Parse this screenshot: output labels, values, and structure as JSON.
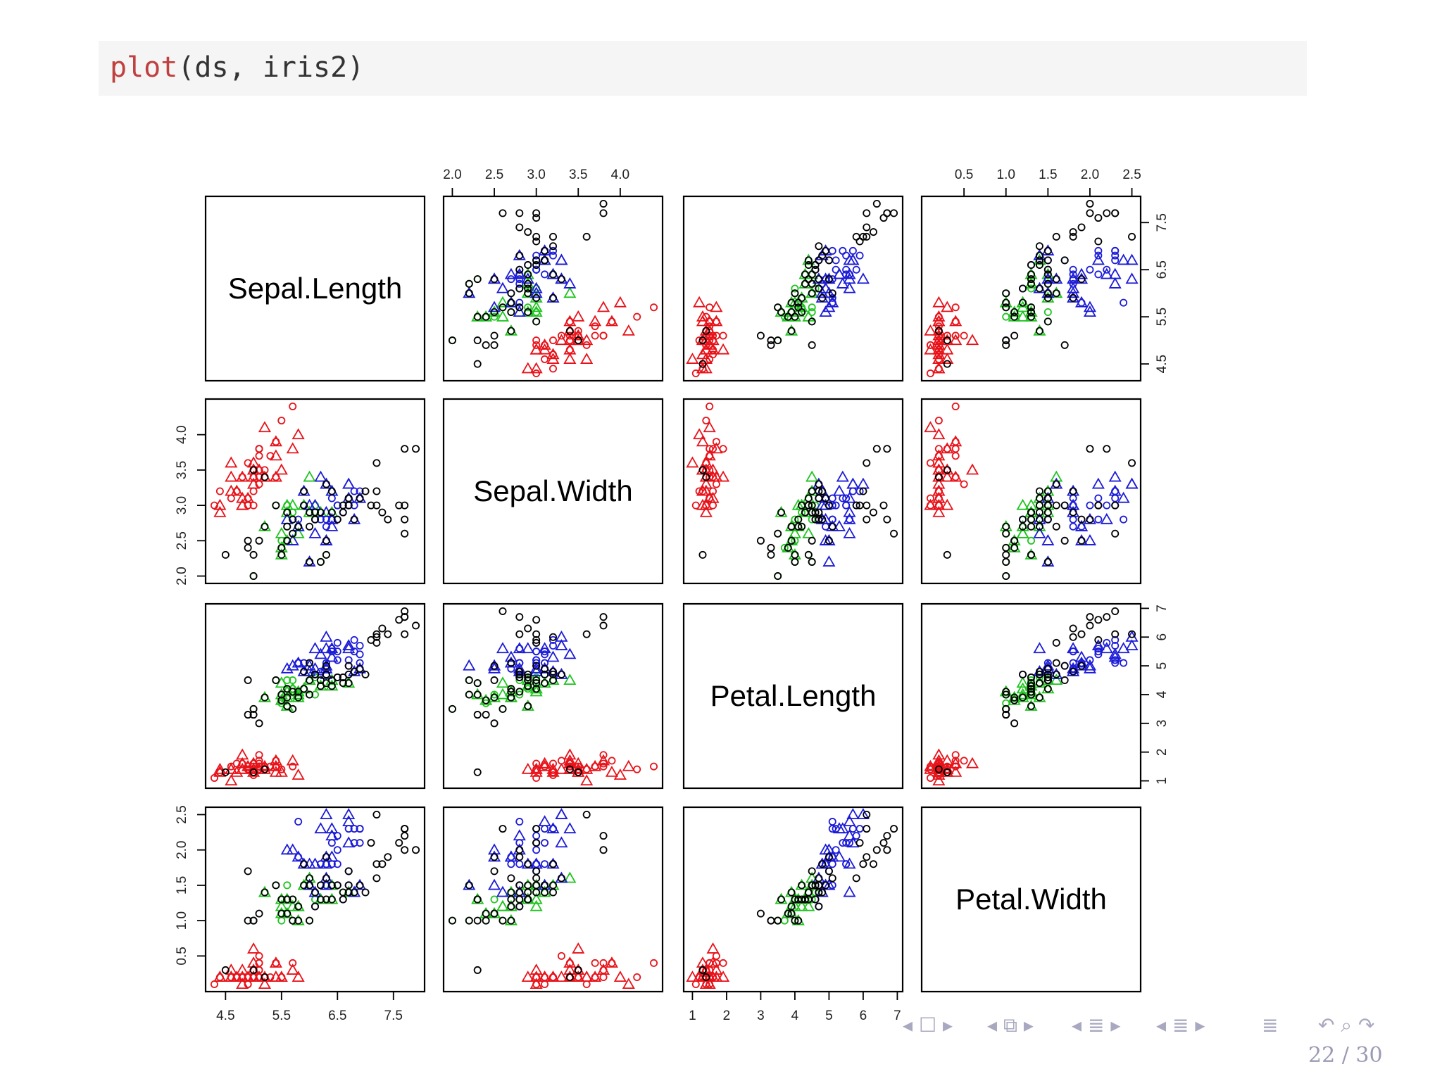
{
  "code": {
    "function_name": "plot",
    "arguments": "(ds, iris2)"
  },
  "chart_data": {
    "type": "scatter",
    "plot_kind": "scatterplot-matrix",
    "variables": [
      "Sepal.Length",
      "Sepal.Width",
      "Petal.Length",
      "Petal.Width"
    ],
    "ranges": {
      "Sepal.Length": [
        4.3,
        7.9
      ],
      "Sepal.Width": [
        2.0,
        4.4
      ],
      "Petal.Length": [
        1.0,
        6.9
      ],
      "Petal.Width": [
        0.1,
        2.5
      ]
    },
    "ticks": {
      "Sepal.Length": [
        "4.5",
        "5.5",
        "6.5",
        "7.5"
      ],
      "Sepal.Width": [
        "2.0",
        "2.5",
        "3.0",
        "3.5",
        "4.0"
      ],
      "Petal.Length": [
        "1",
        "2",
        "3",
        "4",
        "5",
        "6",
        "7"
      ],
      "Petal.Width": [
        "0.5",
        "1.0",
        "1.5",
        "2.0",
        "2.5"
      ]
    },
    "grid": false,
    "legend": "none",
    "colors": {
      "red": "#e8131a",
      "green": "#1fc41f",
      "blue": "#1c1cd8",
      "black": "#000000"
    },
    "marker_shapes": [
      "triangle",
      "circle"
    ],
    "groups": [
      {
        "color": "red",
        "points": [
          [
            5.1,
            3.5,
            1.4,
            0.2
          ],
          [
            4.9,
            3.0,
            1.4,
            0.2
          ],
          [
            4.7,
            3.2,
            1.3,
            0.2
          ],
          [
            4.6,
            3.1,
            1.5,
            0.2
          ],
          [
            5.0,
            3.6,
            1.4,
            0.2
          ],
          [
            5.4,
            3.9,
            1.7,
            0.4
          ],
          [
            4.6,
            3.4,
            1.4,
            0.3
          ],
          [
            5.0,
            3.4,
            1.5,
            0.2
          ],
          [
            4.4,
            2.9,
            1.4,
            0.2
          ],
          [
            4.9,
            3.1,
            1.5,
            0.1
          ],
          [
            5.4,
            3.7,
            1.5,
            0.2
          ],
          [
            4.8,
            3.4,
            1.6,
            0.2
          ],
          [
            4.8,
            3.0,
            1.4,
            0.1
          ],
          [
            4.3,
            3.0,
            1.1,
            0.1
          ],
          [
            5.8,
            4.0,
            1.2,
            0.2
          ],
          [
            5.7,
            4.4,
            1.5,
            0.4
          ],
          [
            5.4,
            3.9,
            1.3,
            0.4
          ],
          [
            5.1,
            3.5,
            1.4,
            0.3
          ],
          [
            5.7,
            3.8,
            1.7,
            0.3
          ],
          [
            5.1,
            3.8,
            1.5,
            0.3
          ],
          [
            5.4,
            3.4,
            1.7,
            0.2
          ],
          [
            5.1,
            3.7,
            1.5,
            0.4
          ],
          [
            4.6,
            3.6,
            1.0,
            0.2
          ],
          [
            5.1,
            3.3,
            1.7,
            0.5
          ],
          [
            4.8,
            3.4,
            1.9,
            0.2
          ],
          [
            5.0,
            3.0,
            1.6,
            0.2
          ],
          [
            5.0,
            3.4,
            1.6,
            0.4
          ],
          [
            5.2,
            3.5,
            1.5,
            0.2
          ],
          [
            5.2,
            3.4,
            1.4,
            0.2
          ],
          [
            4.7,
            3.2,
            1.6,
            0.2
          ],
          [
            4.8,
            3.1,
            1.6,
            0.2
          ],
          [
            5.4,
            3.4,
            1.5,
            0.4
          ],
          [
            5.2,
            4.1,
            1.5,
            0.1
          ],
          [
            5.5,
            4.2,
            1.4,
            0.2
          ],
          [
            4.9,
            3.1,
            1.5,
            0.2
          ],
          [
            5.0,
            3.2,
            1.2,
            0.2
          ],
          [
            5.5,
            3.5,
            1.3,
            0.2
          ],
          [
            4.9,
            3.6,
            1.4,
            0.1
          ],
          [
            4.4,
            3.0,
            1.3,
            0.2
          ],
          [
            5.1,
            3.4,
            1.5,
            0.2
          ],
          [
            5.0,
            3.5,
            1.3,
            0.3
          ],
          [
            4.4,
            3.2,
            1.3,
            0.2
          ],
          [
            5.0,
            3.5,
            1.6,
            0.6
          ],
          [
            5.1,
            3.8,
            1.9,
            0.4
          ],
          [
            4.8,
            3.0,
            1.4,
            0.3
          ],
          [
            5.1,
            3.8,
            1.6,
            0.2
          ],
          [
            4.6,
            3.2,
            1.4,
            0.2
          ],
          [
            5.3,
            3.7,
            1.5,
            0.2
          ],
          [
            5.0,
            3.3,
            1.4,
            0.2
          ]
        ]
      },
      {
        "color": "green",
        "points": [
          [
            5.5,
            2.3,
            4.0,
            1.3
          ],
          [
            5.7,
            2.8,
            4.5,
            1.3
          ],
          [
            5.2,
            2.7,
            3.9,
            1.4
          ],
          [
            5.0,
            2.0,
            3.5,
            1.0
          ],
          [
            5.9,
            3.0,
            4.2,
            1.5
          ],
          [
            6.0,
            2.2,
            4.0,
            1.0
          ],
          [
            5.6,
            2.9,
            3.6,
            1.3
          ],
          [
            5.6,
            3.0,
            4.5,
            1.5
          ],
          [
            5.8,
            2.7,
            4.1,
            1.0
          ],
          [
            6.2,
            2.2,
            4.5,
            1.5
          ],
          [
            5.6,
            2.5,
            3.9,
            1.1
          ],
          [
            6.1,
            2.8,
            4.0,
            1.3
          ],
          [
            6.4,
            2.9,
            4.3,
            1.3
          ],
          [
            6.6,
            3.0,
            4.4,
            1.4
          ],
          [
            6.0,
            2.9,
            4.5,
            1.5
          ],
          [
            5.7,
            2.6,
            3.5,
            1.0
          ],
          [
            5.5,
            2.4,
            3.8,
            1.1
          ],
          [
            5.5,
            2.4,
            3.7,
            1.0
          ],
          [
            5.8,
            2.7,
            3.9,
            1.2
          ],
          [
            5.4,
            3.0,
            4.5,
            1.5
          ],
          [
            6.0,
            3.4,
            4.5,
            1.6
          ],
          [
            6.3,
            2.3,
            4.4,
            1.3
          ],
          [
            5.6,
            3.0,
            4.1,
            1.3
          ],
          [
            5.5,
            2.5,
            4.0,
            1.3
          ],
          [
            5.5,
            2.6,
            4.4,
            1.2
          ],
          [
            6.1,
            3.0,
            4.6,
            1.4
          ],
          [
            5.8,
            2.6,
            4.0,
            1.2
          ],
          [
            5.6,
            2.7,
            4.2,
            1.3
          ],
          [
            5.7,
            3.0,
            4.2,
            1.2
          ],
          [
            5.7,
            2.9,
            4.2,
            1.3
          ],
          [
            6.2,
            2.9,
            4.3,
            1.3
          ],
          [
            5.7,
            2.8,
            4.1,
            1.3
          ],
          [
            6.7,
            3.1,
            4.4,
            1.4
          ],
          [
            6.1,
            2.9,
            4.7,
            1.4
          ],
          [
            6.4,
            3.2,
            4.5,
            1.5
          ]
        ]
      },
      {
        "color": "blue",
        "points": [
          [
            6.9,
            3.1,
            4.9,
            1.5
          ],
          [
            6.5,
            2.8,
            4.6,
            1.5
          ],
          [
            6.3,
            3.3,
            4.7,
            1.6
          ],
          [
            6.6,
            2.9,
            4.6,
            1.3
          ],
          [
            6.8,
            2.8,
            4.8,
            1.4
          ],
          [
            6.7,
            3.0,
            5.0,
            1.7
          ],
          [
            6.3,
            2.5,
            4.9,
            1.5
          ],
          [
            6.1,
            2.8,
            4.7,
            1.2
          ],
          [
            5.9,
            3.2,
            4.8,
            1.8
          ],
          [
            6.7,
            3.1,
            4.7,
            1.5
          ],
          [
            6.3,
            3.3,
            6.0,
            2.5
          ],
          [
            5.8,
            2.7,
            5.1,
            1.9
          ],
          [
            6.3,
            2.9,
            5.6,
            1.8
          ],
          [
            6.5,
            3.0,
            5.8,
            2.2
          ],
          [
            6.4,
            2.7,
            5.3,
            1.9
          ],
          [
            6.8,
            3.0,
            5.5,
            2.1
          ],
          [
            5.7,
            2.5,
            5.0,
            2.0
          ],
          [
            5.8,
            2.8,
            5.1,
            2.4
          ],
          [
            6.4,
            3.2,
            5.3,
            2.3
          ],
          [
            6.5,
            3.0,
            5.5,
            1.8
          ],
          [
            6.0,
            2.2,
            5.0,
            1.5
          ],
          [
            6.9,
            3.2,
            5.7,
            2.3
          ],
          [
            5.6,
            2.8,
            4.9,
            2.0
          ],
          [
            6.3,
            2.7,
            4.9,
            1.8
          ],
          [
            6.7,
            3.3,
            5.7,
            2.1
          ],
          [
            6.2,
            2.8,
            4.8,
            1.8
          ],
          [
            6.1,
            3.0,
            4.9,
            1.8
          ],
          [
            6.4,
            2.8,
            5.6,
            2.1
          ],
          [
            6.4,
            2.8,
            5.6,
            2.2
          ],
          [
            6.3,
            2.8,
            5.1,
            1.5
          ],
          [
            6.1,
            2.6,
            5.6,
            1.4
          ],
          [
            6.4,
            3.1,
            5.5,
            1.8
          ],
          [
            6.0,
            3.0,
            4.8,
            1.8
          ],
          [
            6.9,
            3.1,
            5.4,
            2.1
          ],
          [
            6.7,
            3.1,
            5.6,
            2.4
          ],
          [
            6.9,
            3.1,
            5.1,
            2.3
          ],
          [
            5.8,
            2.7,
            5.1,
            1.9
          ],
          [
            6.8,
            3.2,
            5.9,
            2.3
          ],
          [
            6.7,
            3.3,
            5.7,
            2.5
          ],
          [
            6.7,
            3.0,
            5.2,
            2.3
          ],
          [
            6.3,
            2.5,
            5.0,
            1.9
          ],
          [
            6.5,
            3.0,
            5.2,
            2.0
          ],
          [
            6.2,
            3.4,
            5.4,
            2.3
          ],
          [
            5.9,
            3.0,
            5.1,
            1.8
          ]
        ]
      },
      {
        "color": "black",
        "points": [
          [
            7.0,
            3.2,
            4.7,
            1.4
          ],
          [
            6.4,
            3.2,
            4.5,
            1.5
          ],
          [
            4.9,
            2.4,
            3.3,
            1.0
          ],
          [
            5.2,
            2.7,
            3.9,
            1.4
          ],
          [
            5.0,
            2.0,
            3.5,
            1.0
          ],
          [
            5.9,
            3.0,
            4.2,
            1.5
          ],
          [
            6.0,
            2.2,
            4.0,
            1.0
          ],
          [
            6.1,
            2.9,
            4.7,
            1.4
          ],
          [
            5.6,
            2.9,
            3.6,
            1.3
          ],
          [
            6.7,
            3.1,
            4.4,
            1.4
          ],
          [
            5.8,
            2.7,
            4.1,
            1.0
          ],
          [
            6.2,
            2.2,
            4.5,
            1.5
          ],
          [
            5.6,
            2.5,
            3.9,
            1.1
          ],
          [
            5.9,
            3.2,
            4.8,
            1.8
          ],
          [
            6.1,
            2.8,
            4.7,
            1.2
          ],
          [
            6.4,
            2.9,
            4.3,
            1.3
          ],
          [
            6.6,
            3.0,
            4.4,
            1.4
          ],
          [
            6.8,
            2.8,
            4.8,
            1.4
          ],
          [
            6.7,
            3.0,
            5.0,
            1.7
          ],
          [
            6.0,
            2.9,
            4.5,
            1.5
          ],
          [
            5.7,
            2.6,
            3.5,
            1.0
          ],
          [
            5.5,
            2.4,
            3.8,
            1.1
          ],
          [
            5.8,
            2.7,
            3.9,
            1.2
          ],
          [
            6.0,
            2.7,
            5.1,
            1.6
          ],
          [
            5.4,
            3.0,
            4.5,
            1.5
          ],
          [
            6.7,
            3.1,
            4.7,
            1.5
          ],
          [
            6.3,
            2.3,
            4.4,
            1.3
          ],
          [
            5.0,
            2.3,
            3.3,
            1.0
          ],
          [
            5.1,
            2.5,
            3.0,
            1.1
          ],
          [
            7.6,
            3.0,
            6.6,
            2.1
          ],
          [
            7.3,
            2.9,
            6.3,
            1.8
          ],
          [
            7.2,
            3.6,
            6.1,
            2.5
          ],
          [
            7.7,
            3.8,
            6.7,
            2.2
          ],
          [
            7.7,
            2.6,
            6.9,
            2.3
          ],
          [
            7.7,
            2.8,
            6.7,
            2.0
          ],
          [
            7.2,
            3.2,
            6.0,
            1.8
          ],
          [
            7.2,
            3.0,
            5.8,
            1.6
          ],
          [
            7.4,
            2.8,
            6.1,
            1.9
          ],
          [
            7.9,
            3.8,
            6.4,
            2.0
          ],
          [
            7.7,
            3.0,
            6.1,
            2.3
          ],
          [
            7.1,
            3.0,
            5.9,
            2.1
          ],
          [
            6.3,
            2.5,
            5.0,
            1.9
          ],
          [
            5.7,
            2.8,
            4.1,
            1.3
          ],
          [
            4.9,
            2.5,
            4.5,
            1.7
          ],
          [
            6.2,
            2.9,
            4.3,
            1.3
          ],
          [
            6.5,
            2.8,
            4.6,
            1.5
          ],
          [
            6.9,
            3.1,
            4.9,
            1.5
          ],
          [
            5.5,
            2.3,
            4.0,
            1.3
          ],
          [
            6.3,
            3.3,
            4.7,
            1.6
          ],
          [
            5.2,
            3.4,
            1.4,
            0.2
          ],
          [
            4.5,
            2.3,
            1.3,
            0.3
          ],
          [
            5.0,
            3.5,
            1.3,
            0.3
          ],
          [
            6.6,
            2.9,
            4.6,
            1.3
          ],
          [
            5.6,
            2.7,
            4.2,
            1.3
          ]
        ]
      }
    ]
  },
  "navigation": {
    "icons": [
      "◂ ☐ ▸",
      "◂ ⧉ ▸",
      "◂ ≣ ▸",
      "◂ ≣ ▸",
      "≣",
      "↶ ⌕ ↷"
    ],
    "page_current": "22",
    "page_total": "30",
    "page_separator": "/"
  }
}
